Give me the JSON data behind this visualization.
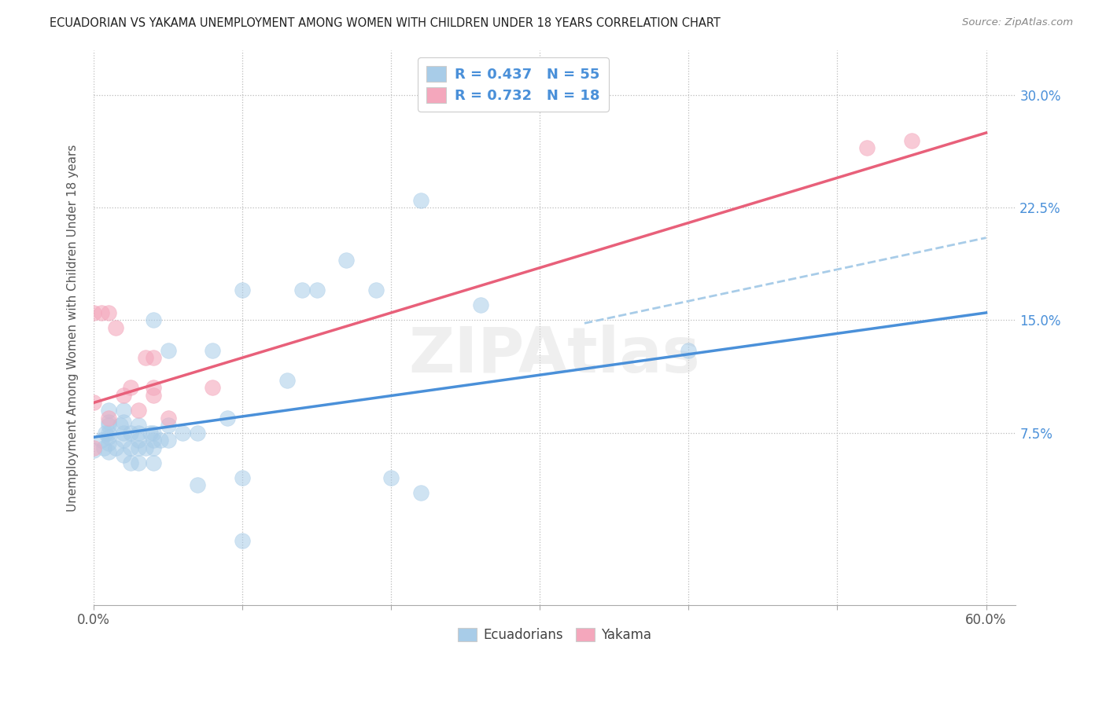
{
  "title": "ECUADORIAN VS YAKAMA UNEMPLOYMENT AMONG WOMEN WITH CHILDREN UNDER 18 YEARS CORRELATION CHART",
  "source": "Source: ZipAtlas.com",
  "ylabel": "Unemployment Among Women with Children Under 18 years",
  "xlim": [
    0.0,
    0.62
  ],
  "ylim": [
    -0.04,
    0.33
  ],
  "background_color": "#ffffff",
  "grid_color": "#bbbbbb",
  "legend_R1": "0.437",
  "legend_N1": "55",
  "legend_R2": "0.732",
  "legend_N2": "18",
  "blue_scatter_color": "#a8cce8",
  "pink_scatter_color": "#f4a7bc",
  "blue_line_color": "#4a90d9",
  "pink_line_color": "#e8607a",
  "dashed_line_color": "#a8cce8",
  "text_color_blue": "#4a90d9",
  "ecuadorians_x": [
    0.0,
    0.005,
    0.007,
    0.008,
    0.01,
    0.01,
    0.01,
    0.01,
    0.01,
    0.01,
    0.01,
    0.015,
    0.018,
    0.02,
    0.02,
    0.02,
    0.02,
    0.02,
    0.025,
    0.025,
    0.025,
    0.03,
    0.03,
    0.03,
    0.03,
    0.03,
    0.035,
    0.038,
    0.04,
    0.04,
    0.04,
    0.04,
    0.04,
    0.045,
    0.05,
    0.05,
    0.05,
    0.06,
    0.07,
    0.07,
    0.08,
    0.09,
    0.1,
    0.1,
    0.1,
    0.13,
    0.14,
    0.15,
    0.17,
    0.19,
    0.2,
    0.22,
    0.22,
    0.26,
    0.4
  ],
  "ecuadorians_y": [
    0.063,
    0.07,
    0.065,
    0.075,
    0.062,
    0.068,
    0.072,
    0.075,
    0.08,
    0.082,
    0.09,
    0.065,
    0.08,
    0.06,
    0.07,
    0.075,
    0.082,
    0.09,
    0.055,
    0.065,
    0.075,
    0.055,
    0.065,
    0.07,
    0.075,
    0.08,
    0.065,
    0.075,
    0.055,
    0.065,
    0.07,
    0.075,
    0.15,
    0.07,
    0.07,
    0.08,
    0.13,
    0.075,
    0.04,
    0.075,
    0.13,
    0.085,
    0.003,
    0.045,
    0.17,
    0.11,
    0.17,
    0.17,
    0.19,
    0.17,
    0.045,
    0.035,
    0.23,
    0.16,
    0.13
  ],
  "yakama_x": [
    0.0,
    0.0,
    0.0,
    0.005,
    0.01,
    0.01,
    0.015,
    0.02,
    0.025,
    0.03,
    0.035,
    0.04,
    0.04,
    0.04,
    0.05,
    0.08,
    0.52,
    0.55
  ],
  "yakama_y": [
    0.065,
    0.095,
    0.155,
    0.155,
    0.085,
    0.155,
    0.145,
    0.1,
    0.105,
    0.09,
    0.125,
    0.1,
    0.105,
    0.125,
    0.085,
    0.105,
    0.265,
    0.27
  ],
  "ecu_line_x0": 0.0,
  "ecu_line_x1": 0.6,
  "ecu_line_y0": 0.072,
  "ecu_line_y1": 0.155,
  "yak_line_x0": 0.0,
  "yak_line_x1": 0.6,
  "yak_line_y0": 0.095,
  "yak_line_y1": 0.275,
  "dashed_line_x0": 0.33,
  "dashed_line_x1": 0.6,
  "dashed_line_y0": 0.148,
  "dashed_line_y1": 0.205,
  "ytick_positions": [
    0.075,
    0.15,
    0.225,
    0.3
  ],
  "ytick_labels": [
    "7.5%",
    "15.0%",
    "22.5%",
    "30.0%"
  ],
  "xtick_positions": [
    0.0,
    0.1,
    0.2,
    0.3,
    0.4,
    0.5,
    0.6
  ],
  "xtick_labels": [
    "0.0%",
    "",
    "",
    "",
    "",
    "",
    "60.0%"
  ]
}
